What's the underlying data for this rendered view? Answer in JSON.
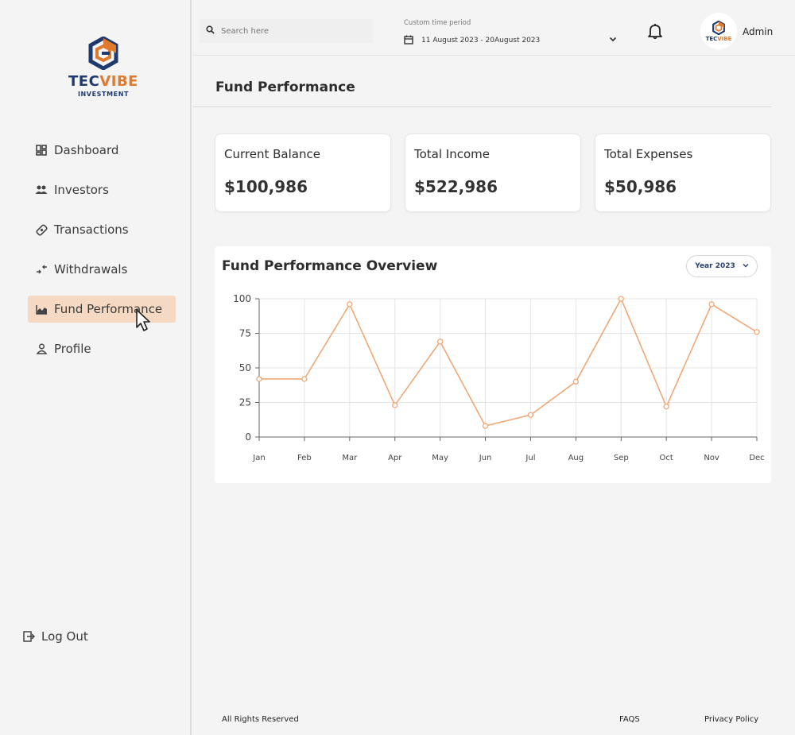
{
  "brand": {
    "name_part1": "TEC",
    "name_part2": "VIBE",
    "tagline": "INVESTMENT",
    "primary_color": "#1f3a6e",
    "accent_color": "#e07a2c"
  },
  "sidebar": {
    "items": [
      {
        "label": "Dashboard",
        "icon": "dashboard-icon",
        "active": false
      },
      {
        "label": "Investors",
        "icon": "investors-icon",
        "active": false
      },
      {
        "label": "Transactions",
        "icon": "transactions-icon",
        "active": false
      },
      {
        "label": "Withdrawals",
        "icon": "withdrawals-icon",
        "active": false
      },
      {
        "label": "Fund Performance",
        "icon": "chart-icon",
        "active": true
      },
      {
        "label": "Profile",
        "icon": "profile-icon",
        "active": false
      }
    ],
    "logout_label": "Log Out",
    "active_bg": "#f6d9c2"
  },
  "header": {
    "search_placeholder": "Search here",
    "time_period_label": "Custom time period",
    "time_period_value": "11 August 2023 - 20August 2023",
    "user_name": "Admin"
  },
  "page": {
    "title": "Fund Performance"
  },
  "cards": [
    {
      "label": "Current Balance",
      "value": "$100,986"
    },
    {
      "label": "Total Income",
      "value": "$522,986"
    },
    {
      "label": "Total Expenses",
      "value": "$50,986"
    }
  ],
  "chart_section": {
    "title": "Fund Performance Overview",
    "year_selector": "Year 2023"
  },
  "chart_data": {
    "type": "line",
    "title": "Fund Performance Overview",
    "categories": [
      "Jan",
      "Feb",
      "Mar",
      "Apr",
      "May",
      "Jun",
      "Jul",
      "Aug",
      "Sep",
      "Oct",
      "Nov",
      "Dec"
    ],
    "values": [
      42,
      42,
      96,
      23,
      69,
      8,
      16,
      40,
      100,
      22,
      96,
      76
    ],
    "yticks": [
      0,
      25,
      50,
      75,
      100
    ],
    "ylim": [
      0,
      100
    ],
    "grid": true,
    "line_color": "#f0a877"
  },
  "footer": {
    "rights": "All Rights Reserved",
    "faqs": "FAQS",
    "privacy": "Privacy Policy"
  }
}
